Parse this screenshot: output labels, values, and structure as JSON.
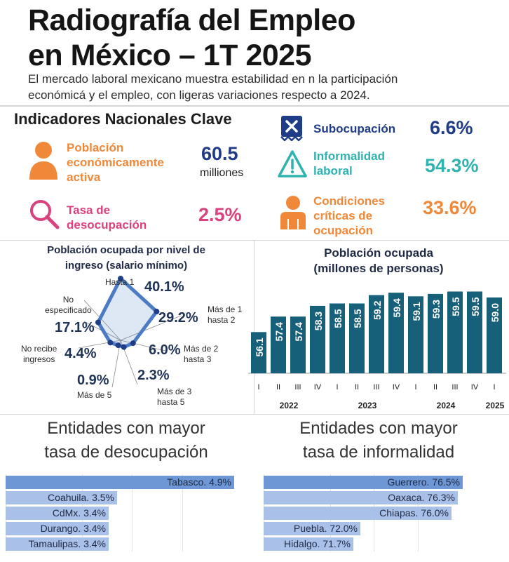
{
  "header": {
    "title_line1": "Radiografía del Empleo",
    "title_line2": "en México – 1T 2025",
    "subtitle_line1": "El mercado laboral mexicano muestra estabilidad en n la participación",
    "subtitle_line2": "económicá y el empleo, con ligeras variaciones respecto a 2024."
  },
  "indicators": {
    "heading": "Indicadores Nacionales Clave",
    "pea": {
      "label_lines": [
        "Población",
        "económicamente",
        "activa"
      ],
      "value": "60.5",
      "unit": "milliones",
      "color": "#f0883a",
      "icon": "person-icon"
    },
    "desocupacion": {
      "label_lines": [
        "Tasa de",
        "desocupación"
      ],
      "value": "2.5%",
      "color": "#d9427e",
      "icon": "magnifier-icon"
    },
    "subocupacion": {
      "label": "Subocupación",
      "value": "6.6%",
      "color": "#1f3c88",
      "icon": "document-x-icon"
    },
    "informalidad": {
      "label_lines": [
        "Informalidad",
        "laboral"
      ],
      "value": "54.3%",
      "color": "#2fb3b0",
      "icon": "warning-icon"
    },
    "criticas": {
      "label_lines": [
        "Condiciones",
        "críticas de",
        "ocupación"
      ],
      "value": "33.6%",
      "color": "#f0883a",
      "icon": "person-icon"
    }
  },
  "chart_data": [
    {
      "type": "radar",
      "title_line1": "Población ocupada por nivel de",
      "title_line2": "ingreso (salario mínimo)",
      "categories": [
        {
          "label_lines": [
            "Hasta 1"
          ],
          "value": 40.1,
          "value_label": "40.1%"
        },
        {
          "label_lines": [
            "Más de 1",
            "hasta 2"
          ],
          "value": 29.2,
          "value_label": "29.2%"
        },
        {
          "label_lines": [
            "Más de 2",
            "hasta 3"
          ],
          "value": 6.0,
          "value_label": "6.0%"
        },
        {
          "label_lines": [
            "Más de 3",
            "hasta 5"
          ],
          "value": 2.3,
          "value_label": "2.3%"
        },
        {
          "label_lines": [
            "Más de 5"
          ],
          "value": 0.9,
          "value_label": "0.9%"
        },
        {
          "label_lines": [
            "No recibe",
            "ingresos"
          ],
          "value": 4.4,
          "value_label": "4.4%"
        },
        {
          "label_lines": [
            "No",
            "especificado"
          ],
          "value": 17.1,
          "value_label": "17.1%"
        }
      ],
      "color": "#4a7bc4"
    },
    {
      "type": "bar",
      "title_line1": "Población ocupada",
      "title_line2": "(millones de personas)",
      "quarters": [
        "I",
        "II",
        "III",
        "IV",
        "I",
        "II",
        "III",
        "IV",
        "I",
        "II",
        "III",
        "IV",
        "I"
      ],
      "values": [
        56.1,
        57.4,
        57.4,
        58.3,
        58.5,
        58.5,
        59.2,
        59.4,
        59.1,
        59.3,
        59.5,
        59.5,
        59.0
      ],
      "years": [
        "2022",
        "2023",
        "2024",
        "2025"
      ],
      "color": "#17607a",
      "ylim": [
        55,
        60
      ]
    },
    {
      "type": "bar",
      "orientation": "horizontal",
      "title_line1": "Entidades con mayor",
      "title_line2": "tasa de desocupación",
      "categories": [
        "Tabasco",
        "Coahuila",
        "CdMx",
        "Durango",
        "Tamaulipas"
      ],
      "labels": [
        "Tabasco. 4.9%",
        "Coahuila. 3.5%",
        "CdMx. 3.4%",
        "Durango. 3.4%",
        "Tamaulipas. 3.4%"
      ],
      "values": [
        4.9,
        3.5,
        3.4,
        3.4,
        3.4
      ],
      "color": "#a9c1e8"
    },
    {
      "type": "bar",
      "orientation": "horizontal",
      "title_line1": "Entidades con mayor",
      "title_line2": "tasa de informalidad",
      "categories": [
        "Guerrero",
        "Oaxaca",
        "Chiapas",
        "Puebla",
        "Hidalgo"
      ],
      "labels": [
        "Guerrero. 76.5%",
        "Oaxaca. 76.3%",
        "Chiapas. 76.0%",
        "Puebla. 72.0%",
        "Hidalgo. 71.7%"
      ],
      "values": [
        76.5,
        76.3,
        76.0,
        72.0,
        71.7
      ],
      "color": "#a9c1e8"
    }
  ]
}
